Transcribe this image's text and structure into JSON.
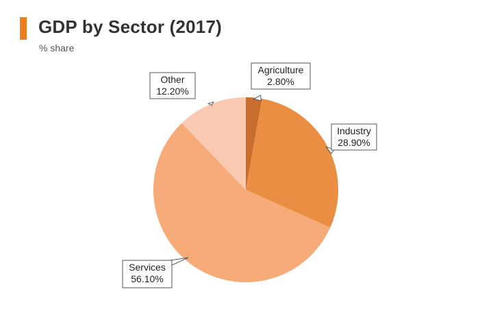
{
  "header": {
    "title": "GDP by Sector (2017)",
    "subtitle": "% share",
    "accent_color": "#f07d1a"
  },
  "chart_data": {
    "type": "pie",
    "title": "GDP by Sector (2017)",
    "subtitle": "% share",
    "slices": [
      {
        "label": "Agriculture",
        "value": 2.8,
        "value_label": "2.80%",
        "color": "#c96d2f"
      },
      {
        "label": "Industry",
        "value": 28.9,
        "value_label": "28.90%",
        "color": "#e98e42"
      },
      {
        "label": "Services",
        "value": 56.1,
        "value_label": "56.10%",
        "color": "#f7ab78"
      },
      {
        "label": "Other",
        "value": 12.2,
        "value_label": "12.20%",
        "color": "#f9cab1"
      }
    ],
    "start_angle": "12 o'clock",
    "direction": "clockwise",
    "legend": "none",
    "data_labels": "callout boxes"
  }
}
